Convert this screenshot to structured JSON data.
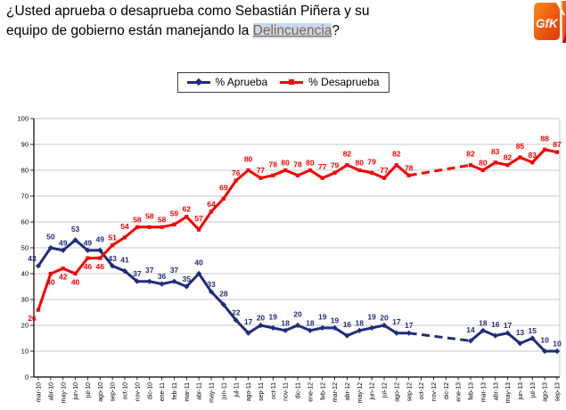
{
  "title": {
    "line1": "¿Usted aprueba o desaprueba como Sebastián Piñera y su",
    "line2_prefix": "equipo de gobierno están manejando la ",
    "highlight": "Delincuencia",
    "suffix": "?"
  },
  "logo": {
    "text": "GfK"
  },
  "chart_data": {
    "type": "line",
    "title": "",
    "xlabel": "",
    "ylabel": "",
    "ylim": [
      0,
      100
    ],
    "ytick_step": 10,
    "grid": true,
    "legend_position": "top-center",
    "x": [
      "mar-10",
      "abr-10",
      "may-10",
      "jun-10",
      "jul-10",
      "ago-10",
      "sep-10",
      "oct-10",
      "nov-10",
      "dic-10",
      "ene-11",
      "feb-11",
      "mar-11",
      "abr-11",
      "may-11",
      "jun-11",
      "jul-11",
      "ago-11",
      "sep-11",
      "oct-11",
      "nov-11",
      "dic-11",
      "ene-12",
      "feb-12",
      "mar-12",
      "abr-12",
      "may-12",
      "jun-12",
      "jul-12",
      "ago-12",
      "sep-12",
      "oct-12",
      "nov-12",
      "dic-12",
      "ene-13",
      "feb-13",
      "mar-13",
      "abr-13",
      "may-13",
      "jun-13",
      "jul-13",
      "ago-13",
      "sep-13"
    ],
    "series": [
      {
        "name": "% Aprueba",
        "color": "#1F2C7C",
        "marker": "diamond",
        "values": [
          43,
          50,
          49,
          53,
          49,
          49,
          43,
          41,
          37,
          37,
          36,
          37,
          35,
          40,
          33,
          28,
          22,
          17,
          20,
          19,
          18,
          20,
          18,
          19,
          19,
          16,
          18,
          19,
          20,
          17,
          17,
          null,
          null,
          null,
          null,
          14,
          18,
          16,
          17,
          13,
          15,
          10,
          10
        ]
      },
      {
        "name": "% Desaprueba",
        "color": "#F50000",
        "marker": "square",
        "values": [
          26,
          40,
          42,
          40,
          46,
          46,
          51,
          54,
          58,
          58,
          58,
          59,
          62,
          57,
          64,
          69,
          76,
          80,
          77,
          78,
          80,
          78,
          80,
          77,
          79,
          82,
          80,
          79,
          77,
          82,
          78,
          null,
          null,
          null,
          null,
          82,
          80,
          83,
          82,
          85,
          83,
          88,
          87
        ]
      }
    ],
    "dashed_gap_months": [
      "oct-12",
      "nov-12",
      "dic-12",
      "ene-13"
    ]
  },
  "colors": {
    "aprueba_navy": "#1F2C7C",
    "desaprueba_red": "#F50000",
    "highlight_bg": "#C6D9F0",
    "highlight_text": "#8B5E3C",
    "logo_orange": "#F47A20",
    "gridline": "#C9C9C9"
  }
}
